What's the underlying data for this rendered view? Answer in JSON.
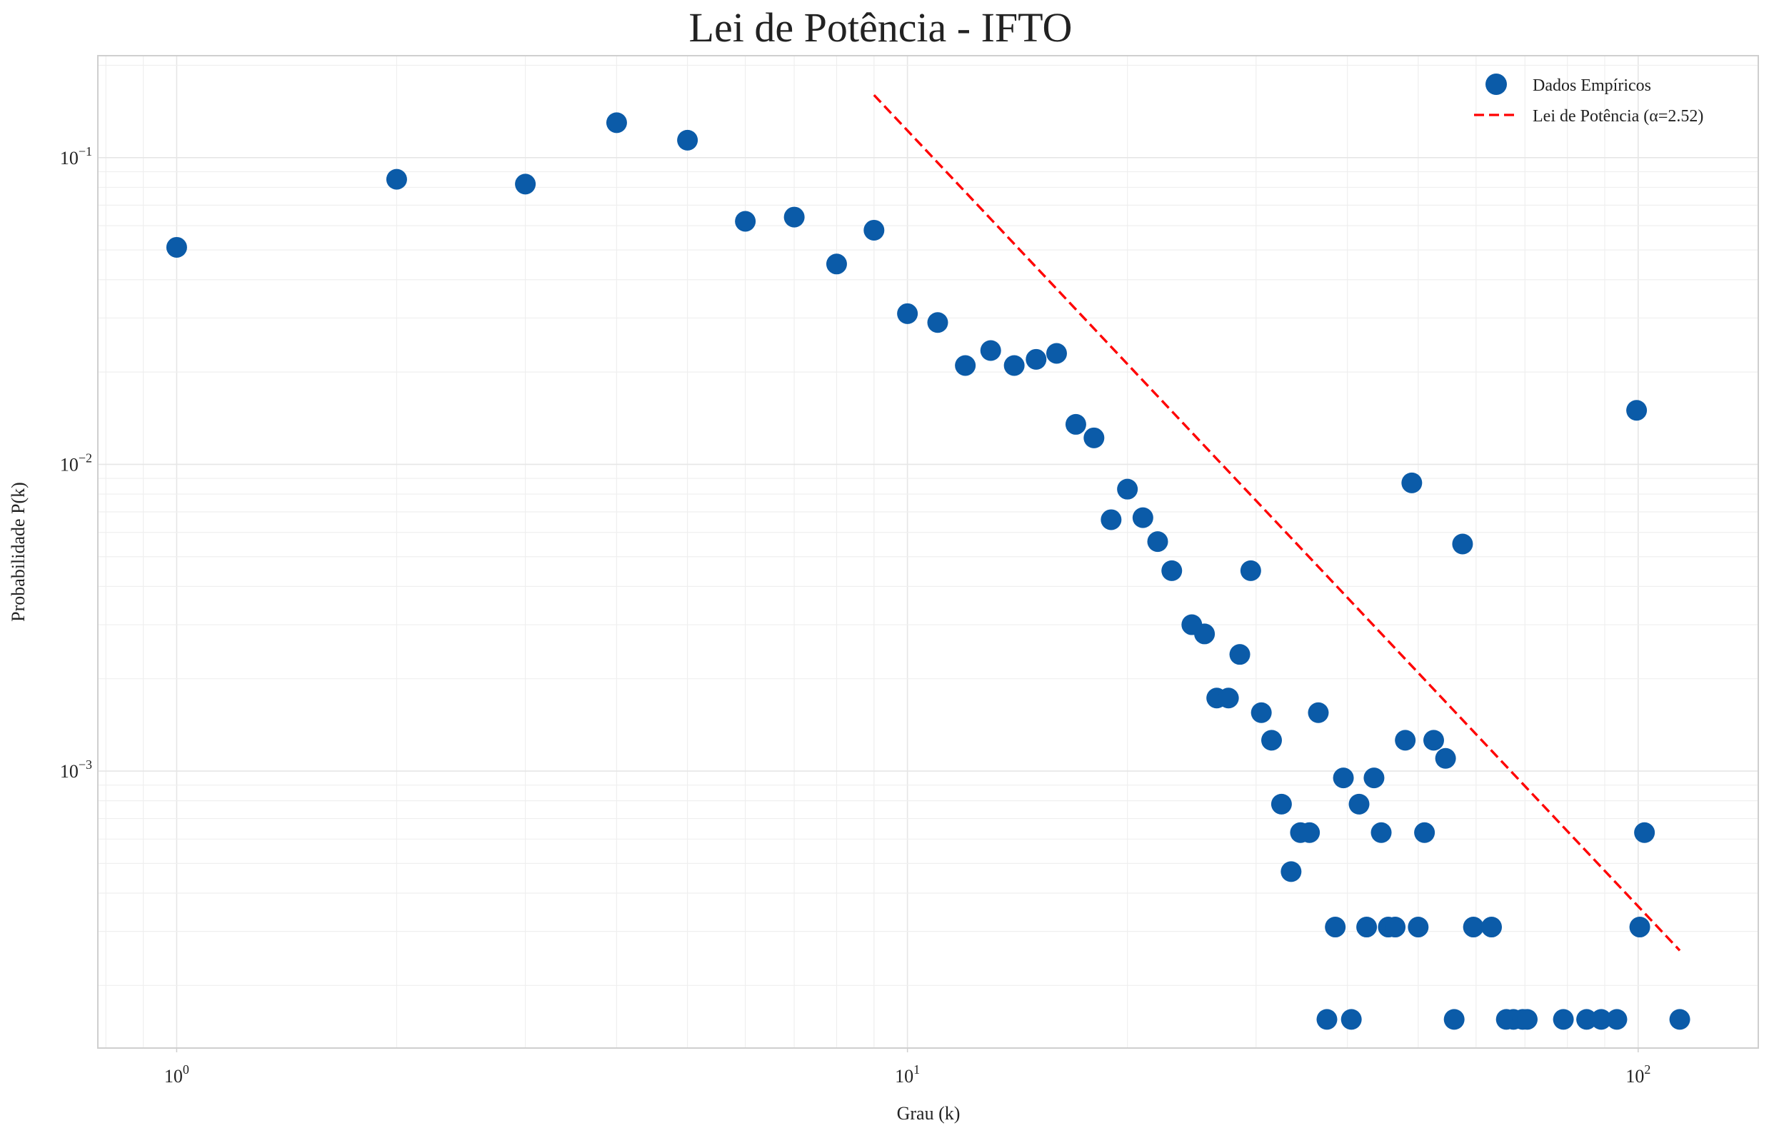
{
  "chart_data": {
    "type": "scatter",
    "title": "Lei de Potência - IFTO",
    "xlabel": "Grau (k)",
    "ylabel": "Probabilidade P(k)",
    "xscale": "log",
    "yscale": "log",
    "xlim": [
      0.78,
      146
    ],
    "ylim": [
      0.000125,
      0.215
    ],
    "xticks": [
      {
        "value": 1,
        "base": "10",
        "exp": "0"
      },
      {
        "value": 10,
        "base": "10",
        "exp": "1"
      },
      {
        "value": 100,
        "base": "10",
        "exp": "2"
      }
    ],
    "yticks": [
      {
        "value": 0.001,
        "base": "10",
        "exp": "−3"
      },
      {
        "value": 0.01,
        "base": "10",
        "exp": "−2"
      },
      {
        "value": 0.1,
        "base": "10",
        "exp": "−1"
      }
    ],
    "grid": true,
    "legend_position": "top-right",
    "series": [
      {
        "name": "Dados Empíricos",
        "kind": "points",
        "color": "#0b5ba8",
        "points": [
          [
            1,
            0.051
          ],
          [
            2,
            0.085
          ],
          [
            3,
            0.082
          ],
          [
            4,
            0.13
          ],
          [
            5,
            0.114
          ],
          [
            6,
            0.062
          ],
          [
            7,
            0.064
          ],
          [
            8,
            0.045
          ],
          [
            9,
            0.058
          ],
          [
            10,
            0.031
          ],
          [
            11,
            0.029
          ],
          [
            12,
            0.021
          ],
          [
            13,
            0.0235
          ],
          [
            14,
            0.021
          ],
          [
            15,
            0.022
          ],
          [
            16,
            0.023
          ],
          [
            17,
            0.0135
          ],
          [
            18,
            0.0122
          ],
          [
            19,
            0.0066
          ],
          [
            20,
            0.0083
          ],
          [
            21,
            0.0067
          ],
          [
            22,
            0.0056
          ],
          [
            23,
            0.0045
          ],
          [
            24.5,
            0.003
          ],
          [
            25.5,
            0.0028
          ],
          [
            26.5,
            0.00173
          ],
          [
            27.5,
            0.00173
          ],
          [
            28.5,
            0.0024
          ],
          [
            29.5,
            0.0045
          ],
          [
            30.5,
            0.00155
          ],
          [
            31.5,
            0.00126
          ],
          [
            32.5,
            0.00078
          ],
          [
            33.5,
            0.00047
          ],
          [
            34.5,
            0.00063
          ],
          [
            35.5,
            0.00063
          ],
          [
            36.5,
            0.00155
          ],
          [
            37.5,
            0.000155
          ],
          [
            38.5,
            0.00031
          ],
          [
            39.5,
            0.00095
          ],
          [
            40.5,
            0.000155
          ],
          [
            41.5,
            0.00078
          ],
          [
            42.5,
            0.00031
          ],
          [
            43.5,
            0.00095
          ],
          [
            44.5,
            0.00063
          ],
          [
            45.5,
            0.00031
          ],
          [
            46.5,
            0.00031
          ],
          [
            48,
            0.00126
          ],
          [
            49,
            0.0087
          ],
          [
            50,
            0.00031
          ],
          [
            51,
            0.00063
          ],
          [
            52.5,
            0.00126
          ],
          [
            54.5,
            0.0011
          ],
          [
            56,
            0.000155
          ],
          [
            57.5,
            0.0055
          ],
          [
            59.5,
            0.00031
          ],
          [
            63,
            0.00031
          ],
          [
            66,
            0.000155
          ],
          [
            67.5,
            0.000155
          ],
          [
            69.5,
            0.000155
          ],
          [
            70.5,
            0.000155
          ],
          [
            79,
            0.000155
          ],
          [
            85,
            0.000155
          ],
          [
            89,
            0.000155
          ],
          [
            93.5,
            0.000155
          ],
          [
            99.5,
            0.015
          ],
          [
            100.5,
            0.00031
          ],
          [
            102,
            0.00063
          ],
          [
            114,
            0.000155
          ]
        ]
      },
      {
        "name": "Lei de Potência (α=2.52)",
        "kind": "fit-line",
        "color": "#ff0000",
        "alpha": 2.52,
        "points": [
          [
            9,
            0.16
          ],
          [
            114,
            0.00026
          ]
        ]
      }
    ]
  }
}
